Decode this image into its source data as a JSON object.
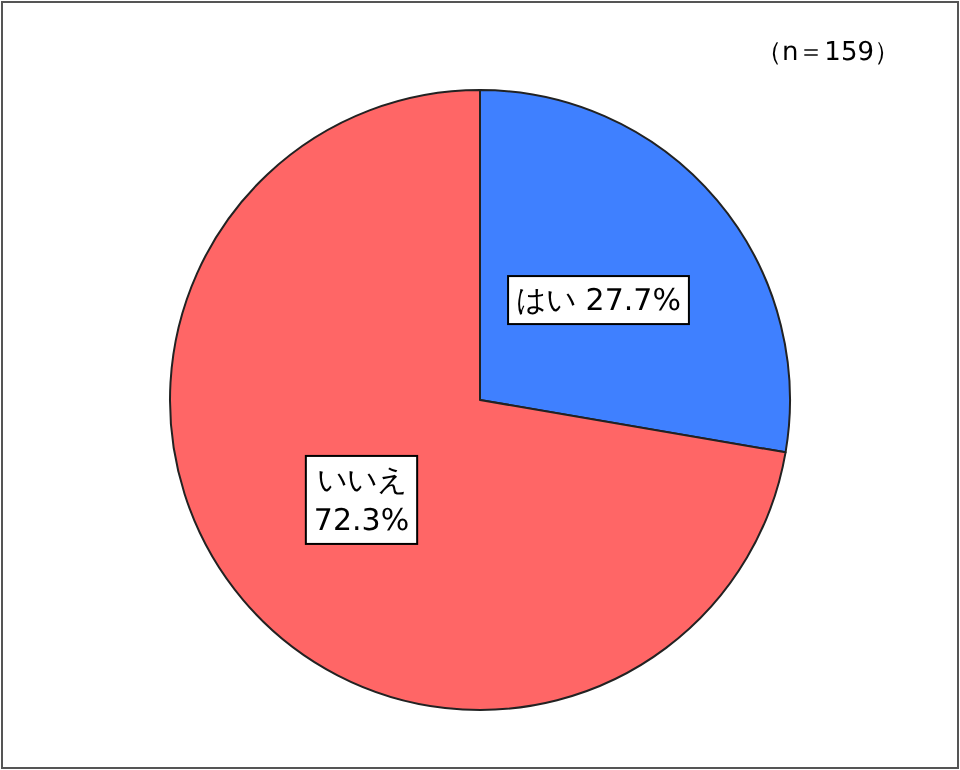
{
  "chart_data": {
    "type": "pie",
    "categories": [
      "はい",
      "いいえ"
    ],
    "values": [
      27.7,
      72.3
    ],
    "colors": [
      "#3f80ff",
      "#ff6666"
    ],
    "value_labels": [
      "27.7%",
      "72.3%"
    ],
    "annotations": [
      "（n＝159）"
    ]
  }
}
